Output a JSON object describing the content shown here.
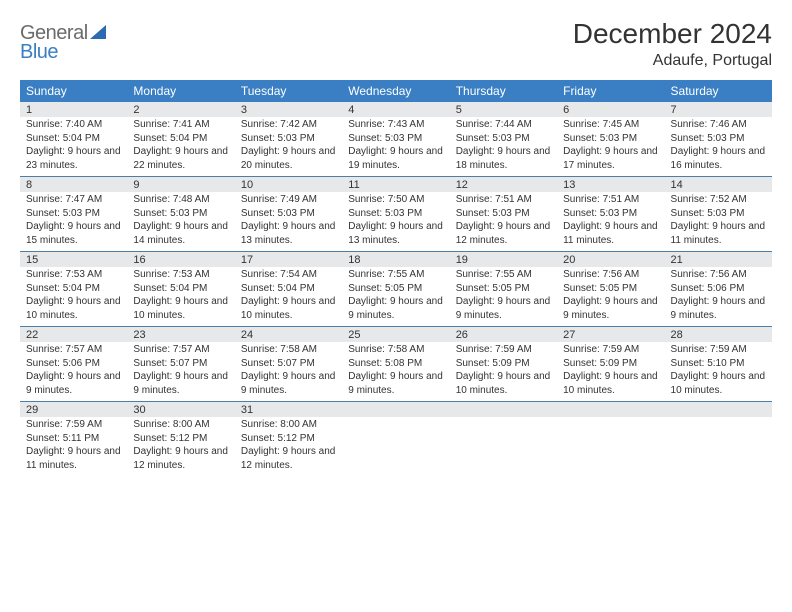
{
  "brand": {
    "part1": "General",
    "part2": "Blue"
  },
  "title": "December 2024",
  "subtitle": "Adaufe, Portugal",
  "colors": {
    "header_bg": "#3a7fc4",
    "daynum_bg": "#e7e8e9",
    "border": "#4b7fa8",
    "text": "#333333",
    "logo_gray": "#6b6b6b",
    "logo_blue": "#3a7fc4"
  },
  "weekdays": [
    "Sunday",
    "Monday",
    "Tuesday",
    "Wednesday",
    "Thursday",
    "Friday",
    "Saturday"
  ],
  "days": [
    {
      "n": 1,
      "sr": "7:40 AM",
      "ss": "5:04 PM",
      "dl": "9 hours and 23 minutes."
    },
    {
      "n": 2,
      "sr": "7:41 AM",
      "ss": "5:04 PM",
      "dl": "9 hours and 22 minutes."
    },
    {
      "n": 3,
      "sr": "7:42 AM",
      "ss": "5:03 PM",
      "dl": "9 hours and 20 minutes."
    },
    {
      "n": 4,
      "sr": "7:43 AM",
      "ss": "5:03 PM",
      "dl": "9 hours and 19 minutes."
    },
    {
      "n": 5,
      "sr": "7:44 AM",
      "ss": "5:03 PM",
      "dl": "9 hours and 18 minutes."
    },
    {
      "n": 6,
      "sr": "7:45 AM",
      "ss": "5:03 PM",
      "dl": "9 hours and 17 minutes."
    },
    {
      "n": 7,
      "sr": "7:46 AM",
      "ss": "5:03 PM",
      "dl": "9 hours and 16 minutes."
    },
    {
      "n": 8,
      "sr": "7:47 AM",
      "ss": "5:03 PM",
      "dl": "9 hours and 15 minutes."
    },
    {
      "n": 9,
      "sr": "7:48 AM",
      "ss": "5:03 PM",
      "dl": "9 hours and 14 minutes."
    },
    {
      "n": 10,
      "sr": "7:49 AM",
      "ss": "5:03 PM",
      "dl": "9 hours and 13 minutes."
    },
    {
      "n": 11,
      "sr": "7:50 AM",
      "ss": "5:03 PM",
      "dl": "9 hours and 13 minutes."
    },
    {
      "n": 12,
      "sr": "7:51 AM",
      "ss": "5:03 PM",
      "dl": "9 hours and 12 minutes."
    },
    {
      "n": 13,
      "sr": "7:51 AM",
      "ss": "5:03 PM",
      "dl": "9 hours and 11 minutes."
    },
    {
      "n": 14,
      "sr": "7:52 AM",
      "ss": "5:03 PM",
      "dl": "9 hours and 11 minutes."
    },
    {
      "n": 15,
      "sr": "7:53 AM",
      "ss": "5:04 PM",
      "dl": "9 hours and 10 minutes."
    },
    {
      "n": 16,
      "sr": "7:53 AM",
      "ss": "5:04 PM",
      "dl": "9 hours and 10 minutes."
    },
    {
      "n": 17,
      "sr": "7:54 AM",
      "ss": "5:04 PM",
      "dl": "9 hours and 10 minutes."
    },
    {
      "n": 18,
      "sr": "7:55 AM",
      "ss": "5:05 PM",
      "dl": "9 hours and 9 minutes."
    },
    {
      "n": 19,
      "sr": "7:55 AM",
      "ss": "5:05 PM",
      "dl": "9 hours and 9 minutes."
    },
    {
      "n": 20,
      "sr": "7:56 AM",
      "ss": "5:05 PM",
      "dl": "9 hours and 9 minutes."
    },
    {
      "n": 21,
      "sr": "7:56 AM",
      "ss": "5:06 PM",
      "dl": "9 hours and 9 minutes."
    },
    {
      "n": 22,
      "sr": "7:57 AM",
      "ss": "5:06 PM",
      "dl": "9 hours and 9 minutes."
    },
    {
      "n": 23,
      "sr": "7:57 AM",
      "ss": "5:07 PM",
      "dl": "9 hours and 9 minutes."
    },
    {
      "n": 24,
      "sr": "7:58 AM",
      "ss": "5:07 PM",
      "dl": "9 hours and 9 minutes."
    },
    {
      "n": 25,
      "sr": "7:58 AM",
      "ss": "5:08 PM",
      "dl": "9 hours and 9 minutes."
    },
    {
      "n": 26,
      "sr": "7:59 AM",
      "ss": "5:09 PM",
      "dl": "9 hours and 10 minutes."
    },
    {
      "n": 27,
      "sr": "7:59 AM",
      "ss": "5:09 PM",
      "dl": "9 hours and 10 minutes."
    },
    {
      "n": 28,
      "sr": "7:59 AM",
      "ss": "5:10 PM",
      "dl": "9 hours and 10 minutes."
    },
    {
      "n": 29,
      "sr": "7:59 AM",
      "ss": "5:11 PM",
      "dl": "9 hours and 11 minutes."
    },
    {
      "n": 30,
      "sr": "8:00 AM",
      "ss": "5:12 PM",
      "dl": "9 hours and 12 minutes."
    },
    {
      "n": 31,
      "sr": "8:00 AM",
      "ss": "5:12 PM",
      "dl": "9 hours and 12 minutes."
    }
  ],
  "labels": {
    "sunrise": "Sunrise:",
    "sunset": "Sunset:",
    "daylight": "Daylight:"
  }
}
